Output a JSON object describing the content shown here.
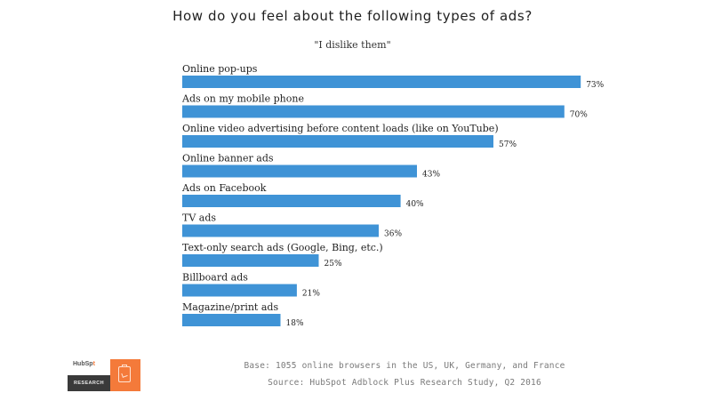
{
  "colors": {
    "bar": "#3f93d6",
    "label_text": "#222222",
    "value_text": "#222222",
    "logo_accent": "#f47a3a",
    "logo_dark": "#3a3a3a"
  },
  "chart_data": {
    "type": "bar",
    "orientation": "horizontal",
    "title": "How do you feel about the following types of ads?",
    "subtitle": "\"I dislike them\"",
    "categories": [
      "Online pop-ups",
      "Ads on my mobile phone",
      "Online video advertising before content loads (like on YouTube)",
      "Online banner ads",
      "Ads on Facebook",
      "TV ads",
      "Text-only search ads (Google, Bing, etc.)",
      "Billboard ads",
      "Magazine/print ads"
    ],
    "values": [
      73,
      70,
      57,
      43,
      40,
      36,
      25,
      21,
      18
    ],
    "value_labels": [
      "73%",
      "70%",
      "57%",
      "43%",
      "40%",
      "36%",
      "25%",
      "21%",
      "18%"
    ],
    "unit": "%",
    "xlim": [
      0,
      100
    ],
    "grid": false,
    "legend": "none"
  },
  "footer": {
    "base": "Base: 1055 online browsers in the US, UK, Germany, and France",
    "source": "Source: HubSpot Adblock Plus Research Study, Q2 2016"
  },
  "logo": {
    "brand_part1": "HubSp",
    "brand_part2": "t",
    "label": "RESEARCH",
    "badge_icon": "clipboard-check-icon"
  }
}
